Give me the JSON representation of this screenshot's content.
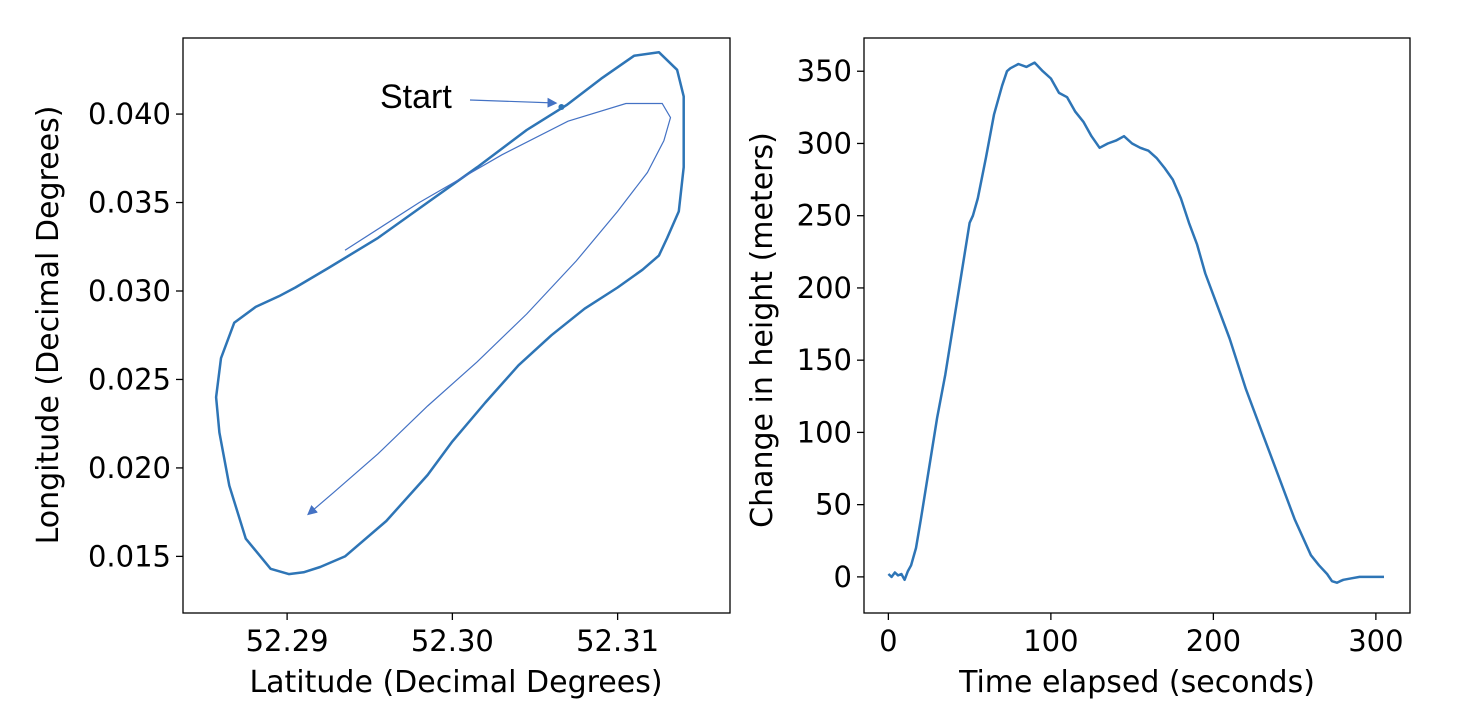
{
  "colors": {
    "series": "#2e75b6",
    "annotation": "#4472c4",
    "axes": "#000000",
    "background": "#ffffff"
  },
  "chart_data": [
    {
      "type": "line",
      "xlabel": "Latitude (Decimal Degrees)",
      "ylabel": "Longitude (Decimal Degrees)",
      "xlim": [
        52.2837,
        52.3168
      ],
      "ylim": [
        0.0118,
        0.0443
      ],
      "xticks": [
        "52.29",
        "52.30",
        "52.31"
      ],
      "xtick_values": [
        52.29,
        52.3,
        52.31
      ],
      "yticks": [
        "0.015",
        "0.020",
        "0.025",
        "0.030",
        "0.035",
        "0.040"
      ],
      "ytick_values": [
        0.015,
        0.02,
        0.025,
        0.03,
        0.035,
        0.04
      ],
      "grid": false,
      "series": [
        {
          "x": [
            52.3069,
            52.309,
            52.311,
            52.3125,
            52.3136,
            52.314,
            52.314,
            52.3137,
            52.313,
            52.3125,
            52.3115,
            52.31,
            52.308,
            52.306,
            52.304,
            52.302,
            52.3,
            52.2985,
            52.296,
            52.2935,
            52.292,
            52.291,
            52.2901,
            52.289,
            52.2875,
            52.2865,
            52.2859,
            52.2857,
            52.286,
            52.2868,
            52.2881,
            52.2895,
            52.2905,
            52.2925,
            52.2955,
            52.2985,
            52.3015,
            52.3045,
            52.3069
          ],
          "y": [
            0.0405,
            0.042,
            0.0433,
            0.0435,
            0.0425,
            0.041,
            0.037,
            0.0345,
            0.033,
            0.032,
            0.0312,
            0.0302,
            0.029,
            0.0275,
            0.0258,
            0.0237,
            0.0215,
            0.0196,
            0.017,
            0.015,
            0.0144,
            0.0141,
            0.014,
            0.0143,
            0.016,
            0.019,
            0.022,
            0.024,
            0.0262,
            0.0282,
            0.0291,
            0.0297,
            0.0302,
            0.0313,
            0.033,
            0.035,
            0.037,
            0.0391,
            0.0405
          ]
        }
      ],
      "annotation": {
        "text": "Start",
        "xy": [
          52.3066,
          0.0404
        ],
        "text_xy": [
          52.2966,
          0.043
        ],
        "path": {
          "x": [
            52.2935,
            52.298,
            52.303,
            52.307,
            52.3105,
            52.3127,
            52.3132,
            52.3128,
            52.3118,
            52.31,
            52.3075,
            52.3045,
            52.3015,
            52.2985,
            52.2955,
            52.2928,
            52.2913
          ],
          "y": [
            0.0323,
            0.035,
            0.0377,
            0.0396,
            0.0406,
            0.0406,
            0.0398,
            0.0385,
            0.0367,
            0.0345,
            0.0317,
            0.0287,
            0.026,
            0.0235,
            0.0208,
            0.0186,
            0.0174
          ]
        }
      }
    },
    {
      "type": "line",
      "xlabel": "Time elapsed (seconds)",
      "ylabel": "Change in height (meters)",
      "xlim": [
        -15,
        321
      ],
      "ylim": [
        -25,
        373
      ],
      "xticks": [
        "0",
        "100",
        "200",
        "300"
      ],
      "xtick_values": [
        0,
        100,
        200,
        300
      ],
      "yticks": [
        "0",
        "50",
        "100",
        "150",
        "200",
        "250",
        "300",
        "350"
      ],
      "ytick_values": [
        0,
        50,
        100,
        150,
        200,
        250,
        300,
        350
      ],
      "grid": false,
      "series": [
        {
          "x": [
            0,
            2,
            4,
            6,
            8,
            10,
            12,
            14,
            17,
            20,
            25,
            30,
            35,
            40,
            45,
            50,
            52,
            55,
            60,
            65,
            70,
            73,
            75,
            80,
            85,
            90,
            95,
            100,
            105,
            110,
            115,
            120,
            125,
            130,
            135,
            140,
            145,
            150,
            155,
            160,
            165,
            170,
            175,
            180,
            185,
            190,
            195,
            200,
            210,
            220,
            230,
            240,
            250,
            260,
            265,
            270,
            273,
            276,
            278,
            280,
            285,
            290,
            300,
            305
          ],
          "y": [
            2,
            0,
            3,
            1,
            2,
            -2,
            4,
            8,
            20,
            40,
            75,
            110,
            140,
            175,
            210,
            245,
            250,
            262,
            290,
            320,
            340,
            350,
            352,
            355,
            353,
            356,
            350,
            345,
            335,
            332,
            322,
            315,
            305,
            297,
            300,
            302,
            305,
            300,
            297,
            295,
            290,
            283,
            275,
            262,
            245,
            230,
            210,
            195,
            165,
            130,
            100,
            70,
            40,
            15,
            8,
            2,
            -3,
            -4,
            -3,
            -2,
            -1,
            0,
            0,
            0
          ]
        }
      ]
    }
  ]
}
